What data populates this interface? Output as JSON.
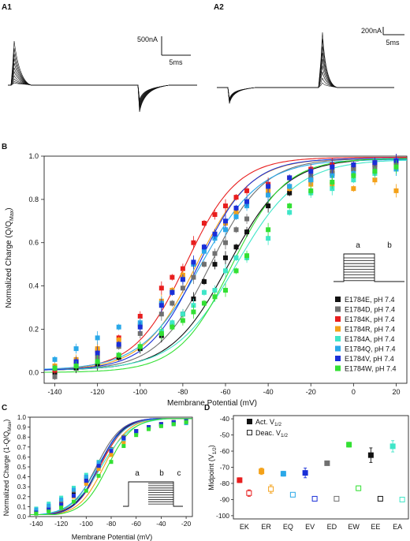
{
  "colors": {
    "E": "#111111",
    "D": "#707070",
    "K": "#e81e1e",
    "R": "#f4a118",
    "A": "#3fe6c8",
    "Q": "#2aa8e8",
    "V": "#1a2fd8",
    "W": "#33e033"
  },
  "panelA1": {
    "label": "A1",
    "scale_y_label": "500nA",
    "scale_x_label": "5ms"
  },
  "panelA2": {
    "label": "A2",
    "scale_y_label": "200nA",
    "scale_x_label": "5ms"
  },
  "panelB_protocol": {
    "a": "a",
    "b": "b"
  },
  "panelC_protocol": {
    "a": "a",
    "b": "b",
    "c": "c"
  },
  "chart_data": [
    {
      "panel": "B",
      "type": "scatter",
      "title": "",
      "xlabel": "Membrane Potential (mV)",
      "ylabel": "Normalized Charge (Q/Q",
      "ylabel_sub": "Max",
      "ylabel_tail": ")",
      "xlim": [
        -145,
        25
      ],
      "ylim": [
        -0.05,
        1.0
      ],
      "xticks": [
        -140,
        -120,
        -100,
        -80,
        -60,
        -40,
        -20,
        0,
        20
      ],
      "yticks": [
        "0.0",
        "0.2",
        "0.4",
        "0.6",
        "0.8",
        "1.0"
      ],
      "legend_placement": "bottom-right",
      "x": [
        -140,
        -130,
        -120,
        -110,
        -100,
        -90,
        -85,
        -80,
        -75,
        -70,
        -65,
        -60,
        -55,
        -50,
        -40,
        -30,
        -20,
        -10,
        0,
        10,
        20
      ],
      "series": [
        {
          "key": "E",
          "name": "E1784E, pH 7.4",
          "v_half": -58.5,
          "slope": 13.5,
          "top": 0.99,
          "bottom": 0.01,
          "y": [
            0.0,
            0.02,
            0.04,
            0.07,
            0.11,
            0.17,
            0.22,
            0.27,
            0.34,
            0.42,
            0.5,
            0.53,
            0.58,
            0.65,
            0.77,
            0.83,
            0.89,
            0.92,
            0.94,
            0.96,
            0.97
          ]
        },
        {
          "key": "D",
          "name": "E1784D, pH 7.4",
          "v_half": -67,
          "slope": 12.5,
          "top": 0.99,
          "bottom": 0.01,
          "y": [
            -0.02,
            0.04,
            0.07,
            0.12,
            0.18,
            0.27,
            0.32,
            0.39,
            0.44,
            0.5,
            0.55,
            0.6,
            0.66,
            0.71,
            0.82,
            0.86,
            0.91,
            0.93,
            0.94,
            0.95,
            0.96
          ]
        },
        {
          "key": "K",
          "name": "E1784K, pH 7.4",
          "v_half": -78.5,
          "slope": 12.0,
          "top": 0.995,
          "bottom": 0.01,
          "y": [
            0.01,
            0.05,
            0.1,
            0.16,
            0.26,
            0.39,
            0.44,
            0.48,
            0.6,
            0.69,
            0.73,
            0.77,
            0.81,
            0.84,
            0.87,
            0.9,
            0.94,
            0.96,
            0.96,
            0.97,
            0.98
          ]
        },
        {
          "key": "R",
          "name": "E1784R, pH 7.4",
          "v_half": -73.5,
          "slope": 12.5,
          "top": 0.99,
          "bottom": 0.01,
          "y": [
            0.03,
            0.06,
            0.11,
            0.15,
            0.22,
            0.33,
            0.38,
            0.45,
            0.5,
            0.57,
            0.64,
            0.69,
            0.74,
            0.79,
            0.84,
            0.85,
            0.87,
            0.87,
            0.85,
            0.89,
            0.84
          ]
        },
        {
          "key": "A",
          "name": "E1784A, pH 7.4",
          "v_half": -55,
          "slope": 14.5,
          "top": 0.985,
          "bottom": 0.01,
          "y": [
            0.02,
            0.03,
            0.05,
            0.08,
            0.12,
            0.19,
            0.23,
            0.27,
            0.31,
            0.37,
            0.38,
            0.47,
            0.53,
            0.53,
            0.62,
            0.74,
            0.83,
            0.85,
            0.89,
            0.92,
            0.94
          ]
        },
        {
          "key": "Q",
          "name": "E1784Q, pH 7.4",
          "v_half": -71.5,
          "slope": 14.0,
          "top": 0.985,
          "bottom": 0.01,
          "y": [
            0.06,
            0.11,
            0.16,
            0.21,
            0.23,
            0.32,
            0.37,
            0.43,
            0.5,
            0.56,
            0.62,
            0.66,
            0.72,
            0.77,
            0.82,
            0.86,
            0.89,
            0.91,
            0.92,
            0.93,
            0.94
          ]
        },
        {
          "key": "V",
          "name": "E1784V, pH 7.4",
          "v_half": -72.5,
          "slope": 12.0,
          "top": 0.99,
          "bottom": 0.01,
          "y": [
            0.02,
            0.05,
            0.09,
            0.13,
            0.21,
            0.31,
            0.37,
            0.43,
            0.51,
            0.58,
            0.64,
            0.7,
            0.76,
            0.79,
            0.86,
            0.9,
            0.93,
            0.95,
            0.96,
            0.97,
            0.98
          ]
        },
        {
          "key": "W",
          "name": "E1784W, pH 7.4",
          "v_half": -57.0,
          "slope": 12.5,
          "top": 0.99,
          "bottom": 0.0,
          "y": [
            0.02,
            0.03,
            0.05,
            0.08,
            0.12,
            0.18,
            0.21,
            0.24,
            0.28,
            0.32,
            0.35,
            0.38,
            0.47,
            0.54,
            0.66,
            0.77,
            0.84,
            0.88,
            0.91,
            0.93,
            0.95
          ]
        }
      ]
    },
    {
      "panel": "C",
      "type": "scatter",
      "title": "",
      "xlabel": "Membrane Potential (mV)",
      "ylabel": "Normalized Charge (1-Q/Q",
      "ylabel_sub": "Max",
      "ylabel_tail": ")",
      "xlim": [
        -145,
        -15
      ],
      "ylim": [
        0.0,
        1.0
      ],
      "xticks": [
        -140,
        -120,
        -100,
        -80,
        -60,
        -40,
        -20
      ],
      "yticks": [
        "0.0",
        "0.1",
        "0.2",
        "0.3",
        "0.4",
        "0.5",
        "0.6",
        "0.7",
        "0.8",
        "0.9",
        "1.0"
      ],
      "x": [
        -140,
        -130,
        -120,
        -110,
        -100,
        -90,
        -80,
        -70,
        -60,
        -50,
        -40,
        -30,
        -20
      ],
      "series": [
        {
          "key": "E",
          "v_half": -90,
          "slope": 10,
          "y": [
            0.05,
            0.08,
            0.14,
            0.23,
            0.38,
            0.52,
            0.67,
            0.8,
            0.86,
            0.9,
            0.93,
            0.95,
            0.96
          ]
        },
        {
          "key": "D",
          "v_half": -92,
          "slope": 10,
          "y": [
            0.06,
            0.1,
            0.16,
            0.26,
            0.4,
            0.55,
            0.68,
            0.8,
            0.86,
            0.9,
            0.93,
            0.95,
            0.96
          ]
        },
        {
          "key": "K",
          "v_half": -89,
          "slope": 10,
          "y": [
            0.04,
            0.07,
            0.12,
            0.21,
            0.35,
            0.5,
            0.64,
            0.77,
            0.86,
            0.9,
            0.93,
            0.95,
            0.96
          ]
        },
        {
          "key": "R",
          "v_half": -86,
          "slope": 10,
          "y": [
            0.04,
            0.07,
            0.12,
            0.2,
            0.33,
            0.48,
            0.62,
            0.75,
            0.84,
            0.89,
            0.92,
            0.93,
            0.94
          ]
        },
        {
          "key": "A",
          "v_half": -88,
          "slope": 12,
          "y": [
            0.08,
            0.13,
            0.19,
            0.29,
            0.42,
            0.55,
            0.67,
            0.78,
            0.85,
            0.89,
            0.92,
            0.94,
            0.95
          ]
        },
        {
          "key": "Q",
          "v_half": -91,
          "slope": 11,
          "y": [
            0.07,
            0.11,
            0.17,
            0.27,
            0.4,
            0.54,
            0.67,
            0.78,
            0.85,
            0.89,
            0.92,
            0.93,
            0.94
          ]
        },
        {
          "key": "V",
          "v_half": -90,
          "slope": 9.5,
          "y": [
            0.04,
            0.07,
            0.12,
            0.21,
            0.36,
            0.51,
            0.66,
            0.79,
            0.86,
            0.9,
            0.93,
            0.95,
            0.96
          ]
        },
        {
          "key": "W",
          "v_half": -83,
          "slope": 10,
          "y": [
            0.03,
            0.05,
            0.09,
            0.15,
            0.26,
            0.41,
            0.55,
            0.71,
            0.82,
            0.88,
            0.91,
            0.93,
            0.95
          ]
        }
      ]
    },
    {
      "panel": "D",
      "type": "scatter",
      "title": "",
      "xlabel": "",
      "ylabel": "Midpoint (V",
      "ylabel_sub": "1/2",
      "ylabel_tail": ")",
      "ylim": [
        -102,
        -38
      ],
      "yticks": [
        -40,
        -50,
        -60,
        -70,
        -80,
        -90,
        -100
      ],
      "categories": [
        "EK",
        "ER",
        "EQ",
        "EV",
        "ED",
        "EW",
        "EE",
        "EA"
      ],
      "category_colors": [
        "K",
        "R",
        "Q",
        "V",
        "D",
        "W",
        "E",
        "A"
      ],
      "legend": [
        "Act. V",
        "Deac. V"
      ],
      "legend_sub": "1/2",
      "legend_placement": "top-left",
      "series": [
        {
          "name": "Act. V1/2",
          "filled": true,
          "values": [
            -78,
            -72.5,
            -74,
            -73.5,
            -67.5,
            -56,
            -62.5,
            -57
          ],
          "errors": [
            1.5,
            2,
            1.5,
            3,
            1.2,
            1.5,
            4.5,
            3.5
          ]
        },
        {
          "name": "Deac. V1/2",
          "filled": false,
          "values": [
            -86,
            -83.5,
            -87,
            -89.5,
            -89.5,
            -83,
            -89.5,
            -90
          ],
          "errors": [
            2,
            2.5,
            1.2,
            1,
            1,
            1.5,
            1,
            1
          ]
        }
      ]
    }
  ]
}
